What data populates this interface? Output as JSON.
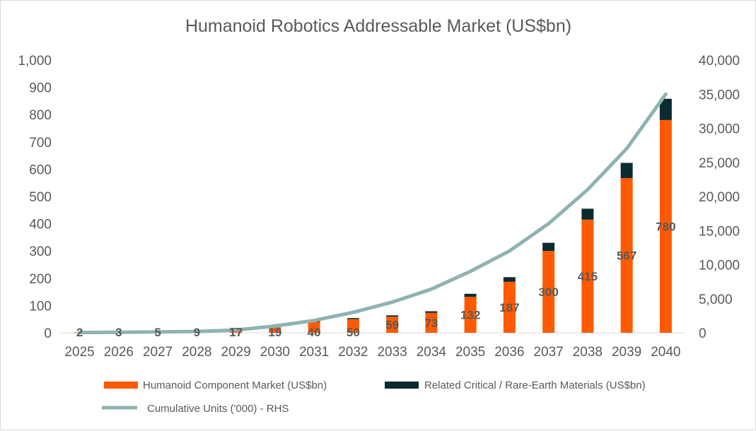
{
  "chart_data": {
    "type": "bar",
    "title": "Humanoid Robotics Addressable Market (US$bn)",
    "categories": [
      "2025",
      "2026",
      "2027",
      "2028",
      "2029",
      "2030",
      "2031",
      "2032",
      "2033",
      "2034",
      "2035",
      "2036",
      "2037",
      "2038",
      "2039",
      "2040"
    ],
    "series": [
      {
        "name": "Humanoid Component Market (US$bn)",
        "kind": "bar",
        "axis": "left",
        "color": "#ff5a00",
        "values": [
          2,
          3,
          5,
          9,
          17,
          19,
          40,
          50,
          59,
          73,
          132,
          187,
          300,
          415,
          567,
          780
        ],
        "data_labels": [
          "2",
          "3",
          "5",
          "9",
          "17",
          "19",
          "40",
          "50",
          "59",
          "73",
          "132",
          "187",
          "300",
          "415",
          "567",
          "780"
        ]
      },
      {
        "name": "Related Critical / Rare-Earth Materials (US$bn)",
        "kind": "bar-stacked",
        "axis": "left",
        "color": "#0b2b30",
        "values": [
          0,
          0,
          0,
          0,
          1,
          1,
          3,
          4,
          5,
          6,
          11,
          17,
          30,
          40,
          56,
          78
        ]
      },
      {
        "name": "Cumulative Units ('000) - RHS",
        "kind": "line",
        "axis": "right",
        "color": "#8fb2b2",
        "values": [
          40,
          70,
          120,
          200,
          400,
          1000,
          1800,
          3000,
          4500,
          6400,
          9000,
          12000,
          16000,
          21000,
          27000,
          35000
        ]
      }
    ],
    "y_left": {
      "min": 0,
      "max": 1000,
      "step": 100,
      "tick_labels": [
        "0",
        "100",
        "200",
        "300",
        "400",
        "500",
        "600",
        "700",
        "800",
        "900",
        "1,000"
      ]
    },
    "y_right": {
      "min": 0,
      "max": 40000,
      "step": 5000,
      "tick_labels": [
        "0",
        "5,000",
        "10,000",
        "15,000",
        "20,000",
        "25,000",
        "30,000",
        "35,000",
        "40,000"
      ]
    },
    "grid": false,
    "legend_position": "bottom"
  }
}
